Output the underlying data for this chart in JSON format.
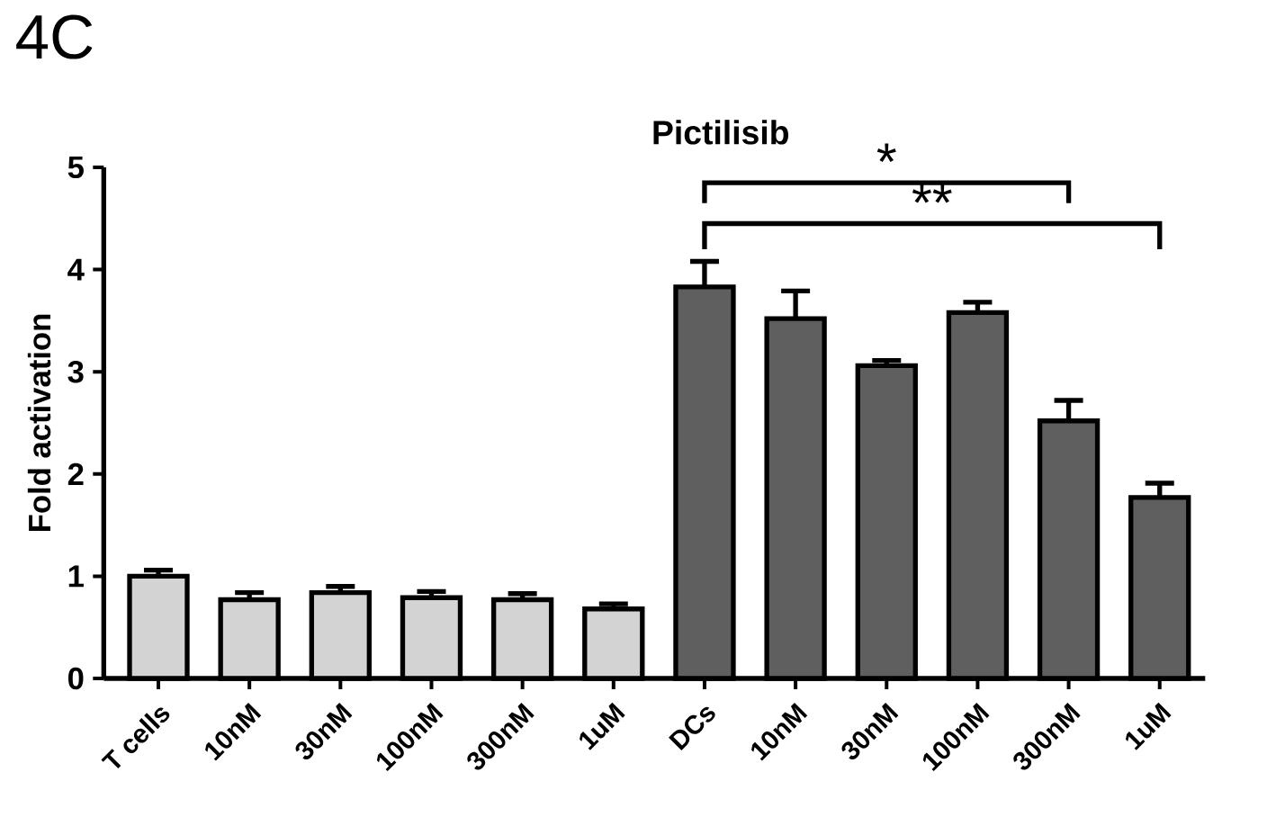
{
  "chart_data": {
    "type": "bar",
    "title": "Pictilisib",
    "ylabel": "Fold activation",
    "categories": [
      "T cells",
      "10nM",
      "30nM",
      "100nM",
      "300nM",
      "1uM",
      "DCs",
      "10nM",
      "30nM",
      "100nM",
      "300nM",
      "1uM"
    ],
    "values": [
      1.0,
      0.77,
      0.84,
      0.79,
      0.77,
      0.68,
      3.83,
      3.52,
      3.06,
      3.58,
      2.52,
      1.77
    ],
    "errors": [
      0.06,
      0.07,
      0.06,
      0.06,
      0.06,
      0.05,
      0.25,
      0.27,
      0.05,
      0.1,
      0.2,
      0.14
    ],
    "colors": [
      "#d3d3d3",
      "#d3d3d3",
      "#d3d3d3",
      "#d3d3d3",
      "#d3d3d3",
      "#d3d3d3",
      "#5f5f5f",
      "#5f5f5f",
      "#5f5f5f",
      "#5f5f5f",
      "#5f5f5f",
      "#5f5f5f"
    ],
    "ylim": [
      0,
      5
    ],
    "yticks": [
      0,
      1,
      2,
      3,
      4,
      5
    ],
    "grid": false,
    "annotations": [
      "4C",
      "*",
      "**"
    ]
  }
}
